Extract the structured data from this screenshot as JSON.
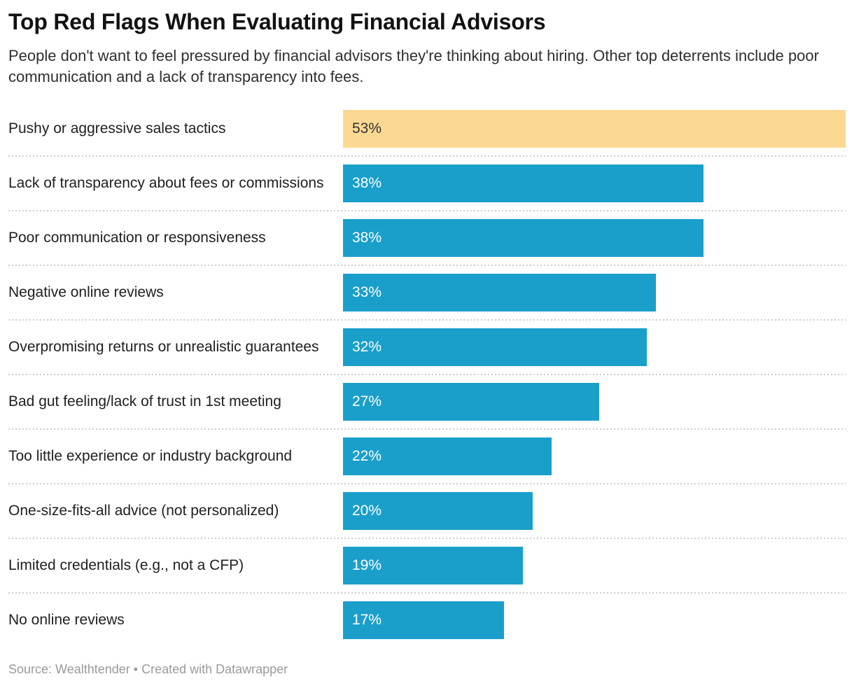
{
  "header": {
    "title": "Top Red Flags When Evaluating Financial Advisors",
    "subtitle": "People don't want to feel pressured by financial advisors they're thinking about hiring. Other top deterrents include poor communication and a lack of transparency into fees."
  },
  "chart_data": {
    "type": "bar",
    "orientation": "horizontal",
    "title": "Top Red Flags When Evaluating Financial Advisors",
    "xlabel": "",
    "ylabel": "",
    "unit": "%",
    "max_value": 53,
    "axis_range": [
      0,
      53
    ],
    "grid": false,
    "legend": "none",
    "categories": [
      "Pushy or aggressive sales tactics",
      "Lack of transparency about fees or commissions",
      "Poor communication or responsiveness",
      "Negative online reviews",
      "Overpromising returns or unrealistic guarantees",
      "Bad gut feeling/lack of trust in 1st meeting",
      "Too little experience or industry background",
      "One-size-fits-all advice (not personalized)",
      "Limited credentials (e.g., not a CFP)",
      "No online reviews"
    ],
    "values": [
      53,
      38,
      38,
      33,
      32,
      27,
      22,
      20,
      19,
      17
    ],
    "value_labels": [
      "53%",
      "38%",
      "38%",
      "33%",
      "32%",
      "27%",
      "22%",
      "20%",
      "19%",
      "17%"
    ],
    "highlight_index": 0,
    "bar_colors": {
      "highlight": "#fbd992",
      "default": "#1a9fcb"
    },
    "value_label_colors": {
      "on_highlight": "#333333",
      "on_default": "#ffffff"
    }
  },
  "footer": {
    "text": "Source: Wealthtender • Created with Datawrapper"
  }
}
